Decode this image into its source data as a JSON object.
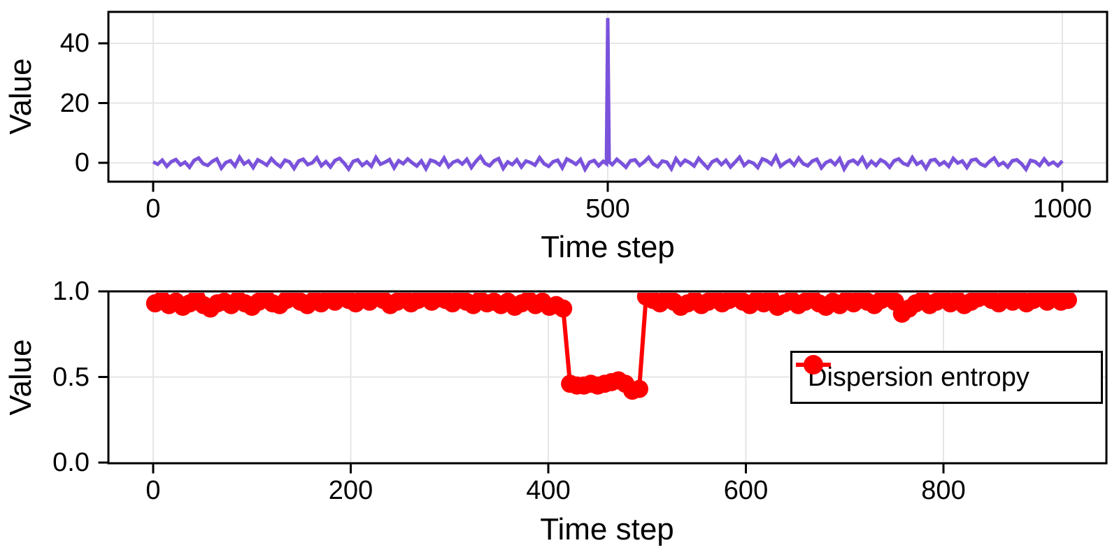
{
  "figure": {
    "background": "#FFFFFF"
  },
  "chart_data": [
    {
      "id": "signal-panel",
      "type": "line",
      "title": "",
      "xlabel": "Time step",
      "ylabel": "Value",
      "xlim": [
        -49,
        1049
      ],
      "ylim": [
        -6.3,
        50.5
      ],
      "grid": true,
      "xticks": [
        0,
        500,
        1000
      ],
      "xtick_labels": [
        "0",
        "500",
        "1000"
      ],
      "yticks": [
        0,
        20,
        40
      ],
      "ytick_labels": [
        "0",
        "20",
        "40"
      ],
      "line_color": "#7A52DB",
      "line_width": 5,
      "x_start": 0,
      "x_step": 5,
      "spike": {
        "x": 500,
        "value": 48.5
      },
      "values": [
        0.3,
        -0.5,
        0.9,
        -1.2,
        0.4,
        1.1,
        -0.7,
        0.2,
        -1.5,
        0.8,
        1.6,
        -0.3,
        -0.9,
        0.5,
        1.3,
        -1.8,
        0.1,
        0.7,
        -1.1,
        1.9,
        -0.4,
        0.6,
        -1.6,
        1.0,
        0.2,
        -0.8,
        1.4,
        -0.2,
        -1.3,
        0.9,
        0.3,
        -1.9,
        0.6,
        1.2,
        -0.6,
        0.0,
        1.7,
        -1.0,
        0.4,
        -1.4,
        0.8,
        1.5,
        -0.1,
        -2.1,
        0.5,
        1.0,
        -0.9,
        0.3,
        -1.2,
        1.8,
        -0.5,
        0.2,
        1.1,
        -1.7,
        0.7,
        -0.3,
        1.3,
        0.0,
        -1.1,
        0.6,
        -2.0,
        0.9,
        0.4,
        -0.7,
        1.6,
        -1.3,
        0.2,
        0.8,
        -0.4,
        1.2,
        -1.6,
        0.5,
        2.1,
        -0.2,
        -1.0,
        0.7,
        1.4,
        -1.9,
        0.3,
        -0.6,
        1.0,
        -1.4,
        0.6,
        0.1,
        -0.8,
        1.7,
        -0.3,
        -1.2,
        0.4,
        0.9,
        -1.7,
        1.3,
        0.5,
        -0.5,
        1.1,
        -2.2,
        0.2,
        0.8,
        -1.0,
        0.5,
        48.5,
        -0.6,
        1.2,
        -0.1,
        -1.5,
        0.7,
        1.0,
        -0.9,
        0.3,
        1.8,
        -0.4,
        -1.3,
        0.6,
        0.2,
        -2.0,
        1.4,
        -0.7,
        0.9,
        0.1,
        -1.1,
        1.5,
        -0.2,
        -1.8,
        0.4,
        1.1,
        -0.6,
        0.8,
        -1.4,
        0.2,
        1.9,
        -0.9,
        0.5,
        -0.1,
        -1.6,
        1.3,
        0.7,
        -0.5,
        2.2,
        -1.2,
        0.0,
        0.9,
        -0.8,
        1.6,
        -0.3,
        -1.0,
        0.6,
        1.2,
        -1.7,
        0.1,
        0.8,
        -0.6,
        1.4,
        -2.1,
        0.3,
        0.9,
        -0.4,
        1.7,
        -1.3,
        0.5,
        -0.9,
        1.0,
        0.2,
        -1.5,
        0.7,
        1.3,
        -0.2,
        -0.8,
        1.8,
        -0.5,
        0.4,
        -1.9,
        0.8,
        1.1,
        -0.7,
        0.3,
        -1.2,
        1.5,
        -0.1,
        0.6,
        -1.6,
        0.9,
        1.2,
        -0.4,
        -1.1,
        0.5,
        1.6,
        -0.8,
        0.1,
        -1.4,
        0.7,
        1.0,
        -0.3,
        -2.2,
        0.8,
        0.4,
        -0.9,
        1.3,
        -0.6,
        0.2,
        -1.0,
        0.6
      ]
    },
    {
      "id": "entropy-panel",
      "type": "scatter-line",
      "title": "",
      "xlabel": "Time step",
      "ylabel": "Value",
      "xlim": [
        -45,
        965
      ],
      "ylim": [
        0.0,
        1.0
      ],
      "grid": true,
      "xticks": [
        0,
        200,
        400,
        600,
        800
      ],
      "xtick_labels": [
        "0",
        "200",
        "400",
        "600",
        "800"
      ],
      "yticks": [
        0.0,
        0.5,
        1.0
      ],
      "ytick_labels": [
        "0.0",
        "0.5",
        "1.0"
      ],
      "marker_color": "#FF0000",
      "marker_radius_px": 13,
      "line_width": 6,
      "x_start": 2,
      "x_step": 7,
      "dip_region": {
        "x_from": 422,
        "x_to": 492,
        "approx_value": 0.45
      },
      "legend": {
        "label": "Dispersion entropy",
        "position": "center-right"
      },
      "values": [
        0.93,
        0.95,
        0.92,
        0.94,
        0.91,
        0.93,
        0.96,
        0.92,
        0.9,
        0.93,
        0.94,
        0.92,
        0.95,
        0.93,
        0.91,
        0.94,
        0.96,
        0.93,
        0.92,
        0.95,
        0.97,
        0.94,
        0.92,
        0.95,
        0.93,
        0.96,
        0.94,
        0.97,
        0.95,
        0.93,
        0.96,
        0.94,
        0.97,
        0.95,
        0.92,
        0.94,
        0.96,
        0.93,
        0.95,
        0.97,
        0.94,
        0.96,
        0.95,
        0.93,
        0.96,
        0.94,
        0.92,
        0.95,
        0.93,
        0.94,
        0.92,
        0.94,
        0.91,
        0.93,
        0.95,
        0.92,
        0.94,
        0.91,
        0.92,
        0.9,
        0.46,
        0.45,
        0.45,
        0.46,
        0.45,
        0.46,
        0.47,
        0.48,
        0.46,
        0.42,
        0.43,
        0.97,
        0.95,
        0.93,
        0.96,
        0.94,
        0.91,
        0.93,
        0.95,
        0.92,
        0.94,
        0.96,
        0.93,
        0.95,
        0.97,
        0.94,
        0.92,
        0.95,
        0.93,
        0.96,
        0.91,
        0.93,
        0.95,
        0.92,
        0.94,
        0.96,
        0.93,
        0.91,
        0.94,
        0.92,
        0.95,
        0.93,
        0.96,
        0.94,
        0.92,
        0.95,
        0.97,
        0.94,
        0.87,
        0.9,
        0.93,
        0.95,
        0.92,
        0.94,
        0.96,
        0.93,
        0.95,
        0.92,
        0.94,
        0.96,
        0.97,
        0.95,
        0.93,
        0.96,
        0.94,
        0.96,
        0.93,
        0.95,
        0.97,
        0.94,
        0.96,
        0.94,
        0.95
      ]
    }
  ],
  "style": {
    "grid_color": "#E6E6E6",
    "axis_color": "#000000"
  }
}
